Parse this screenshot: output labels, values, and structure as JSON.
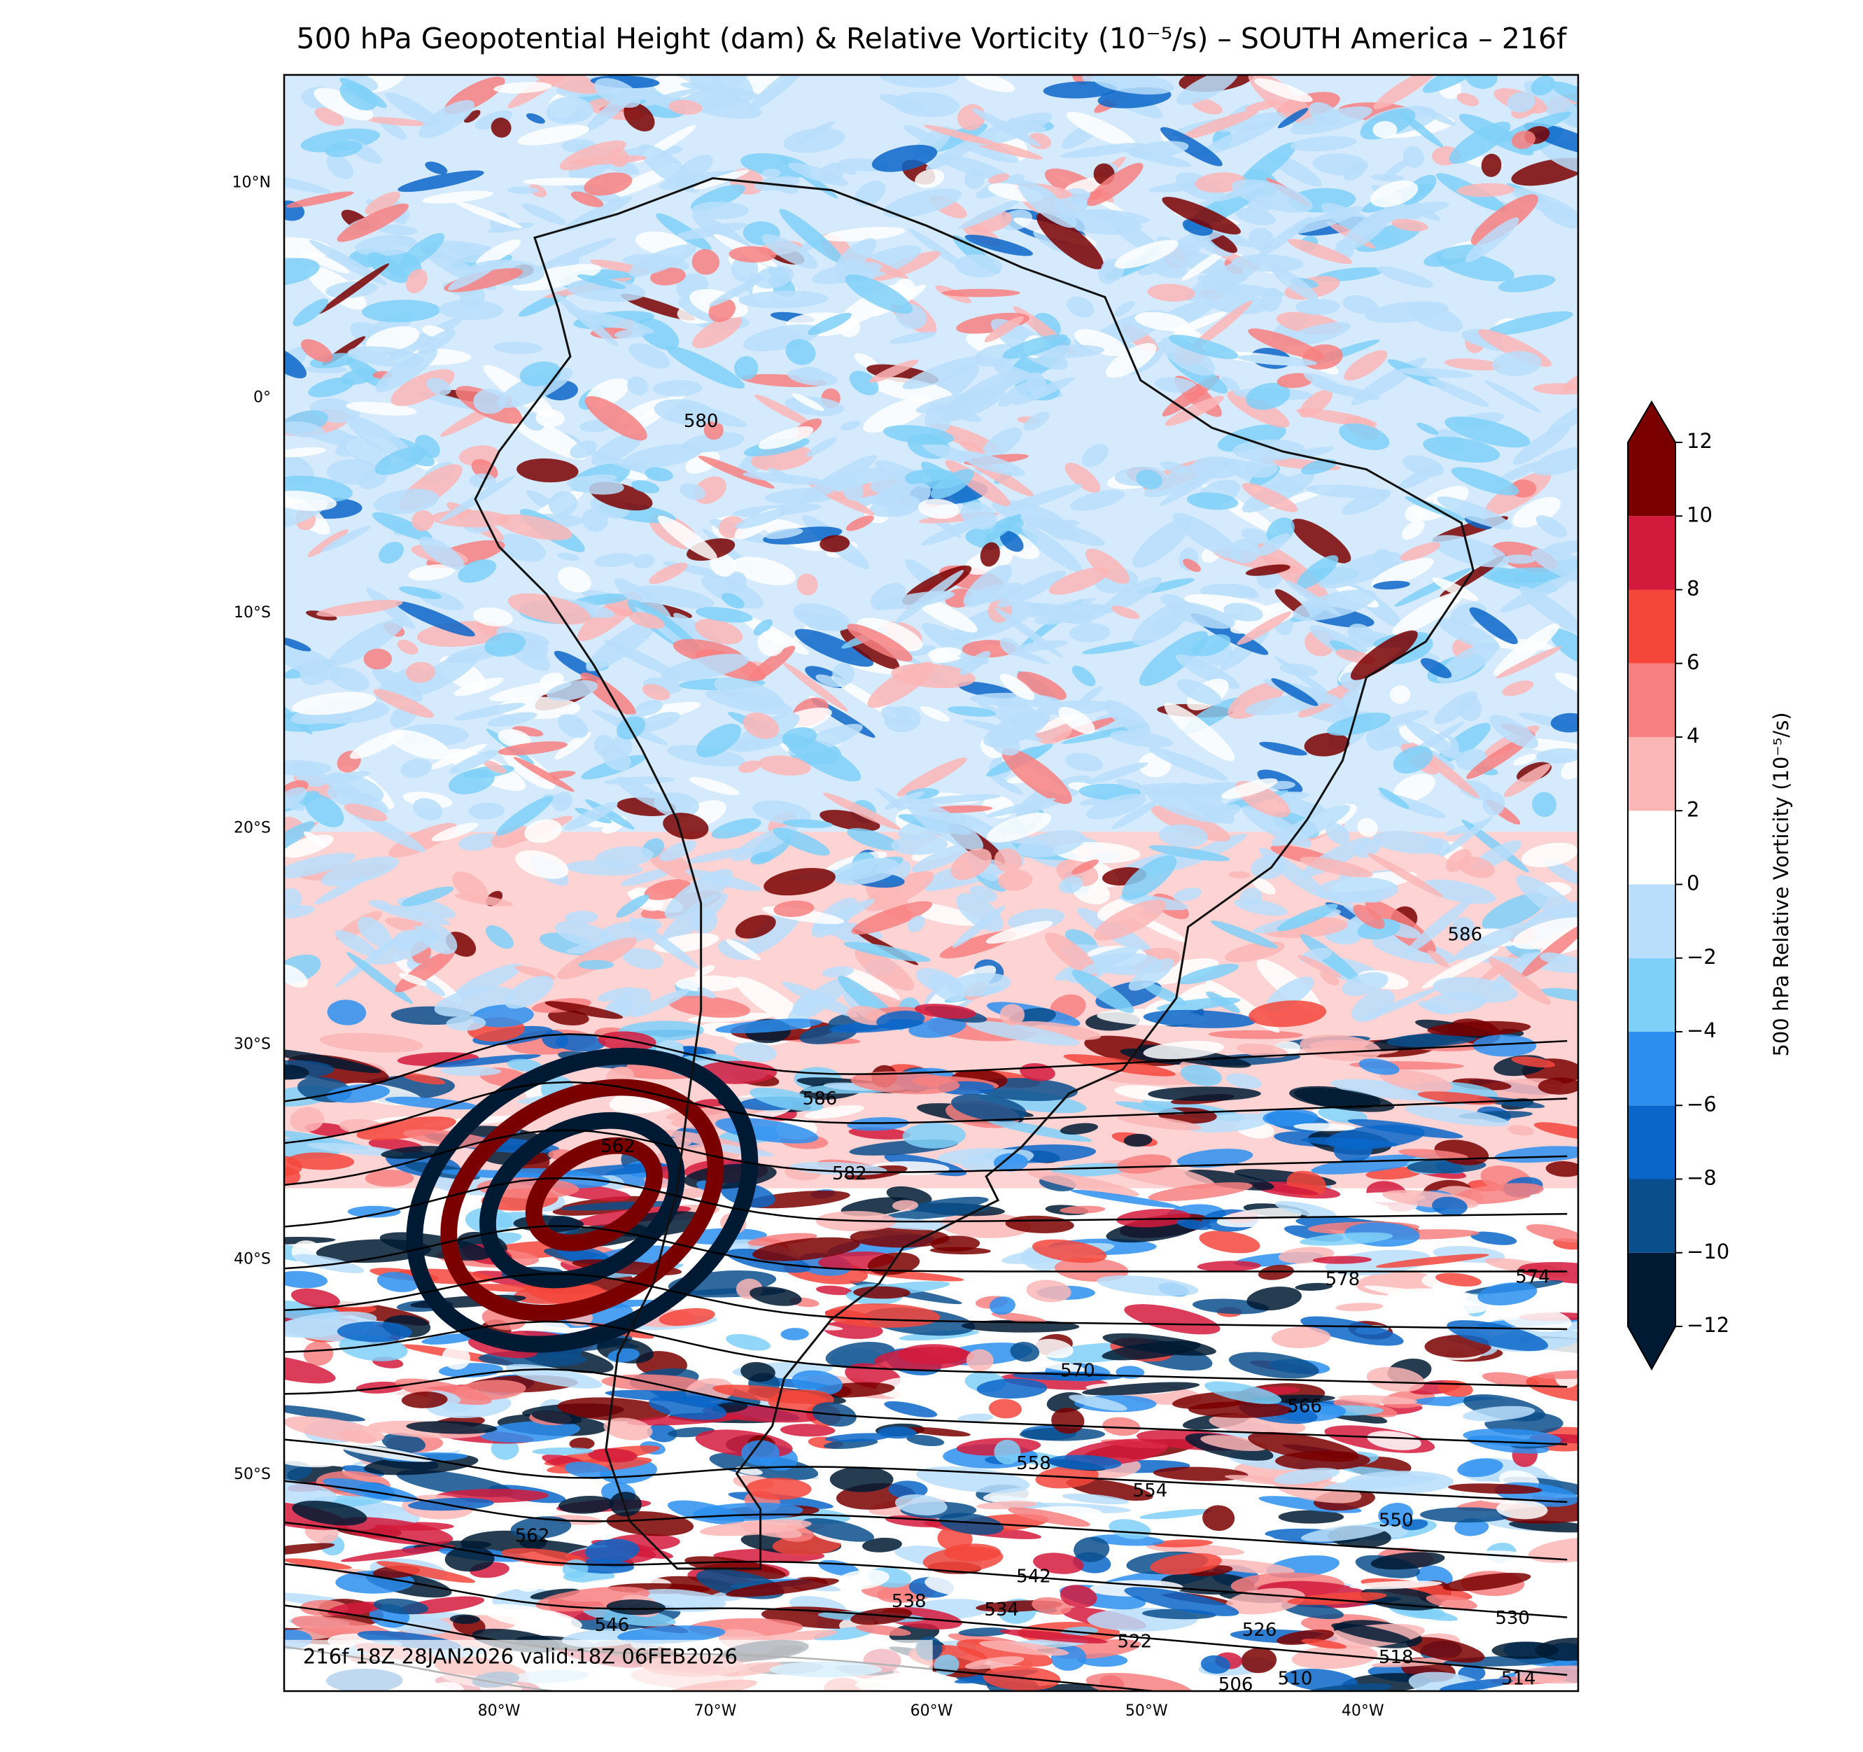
{
  "title": "500 hPa Geopotential Height (dam) & Relative Vorticity (10⁻⁵/s) – SOUTH America – 216f",
  "map": {
    "lat_labels": [
      "10°N",
      "0°",
      "10°S",
      "20°S",
      "30°S",
      "40°S",
      "50°S"
    ],
    "lon_labels": [
      "80°W",
      "70°W",
      "60°W",
      "50°W",
      "40°W"
    ],
    "contour_labels": [
      "580",
      "586",
      "586",
      "562",
      "582",
      "578",
      "574",
      "570",
      "566",
      "558",
      "554",
      "550",
      "562",
      "542",
      "538",
      "534",
      "546",
      "530",
      "526",
      "522",
      "518",
      "510",
      "514",
      "506"
    ]
  },
  "colorbar": {
    "label": "500 hPa Relative Vorticity (10⁻⁵/s)",
    "ticks": [
      {
        "value": -12,
        "label": "−12"
      },
      {
        "value": -10,
        "label": "−10"
      },
      {
        "value": -8,
        "label": "−8"
      },
      {
        "value": -6,
        "label": "−6"
      },
      {
        "value": -4,
        "label": "−4"
      },
      {
        "value": -2,
        "label": "−2"
      },
      0,
      2,
      4,
      6,
      8,
      10,
      12
    ],
    "colors": [
      "#001a33",
      "#0a4f8c",
      "#0a66c8",
      "#2c8ff0",
      "#7fd0f8",
      "#b9defb",
      "#ffffff",
      "#fbb6b6",
      "#f88080",
      "#f5463c",
      "#d41a3c",
      "#7a0000"
    ]
  },
  "footer": "216f 18Z 28JAN2026 valid:18Z 06FEB2026"
}
